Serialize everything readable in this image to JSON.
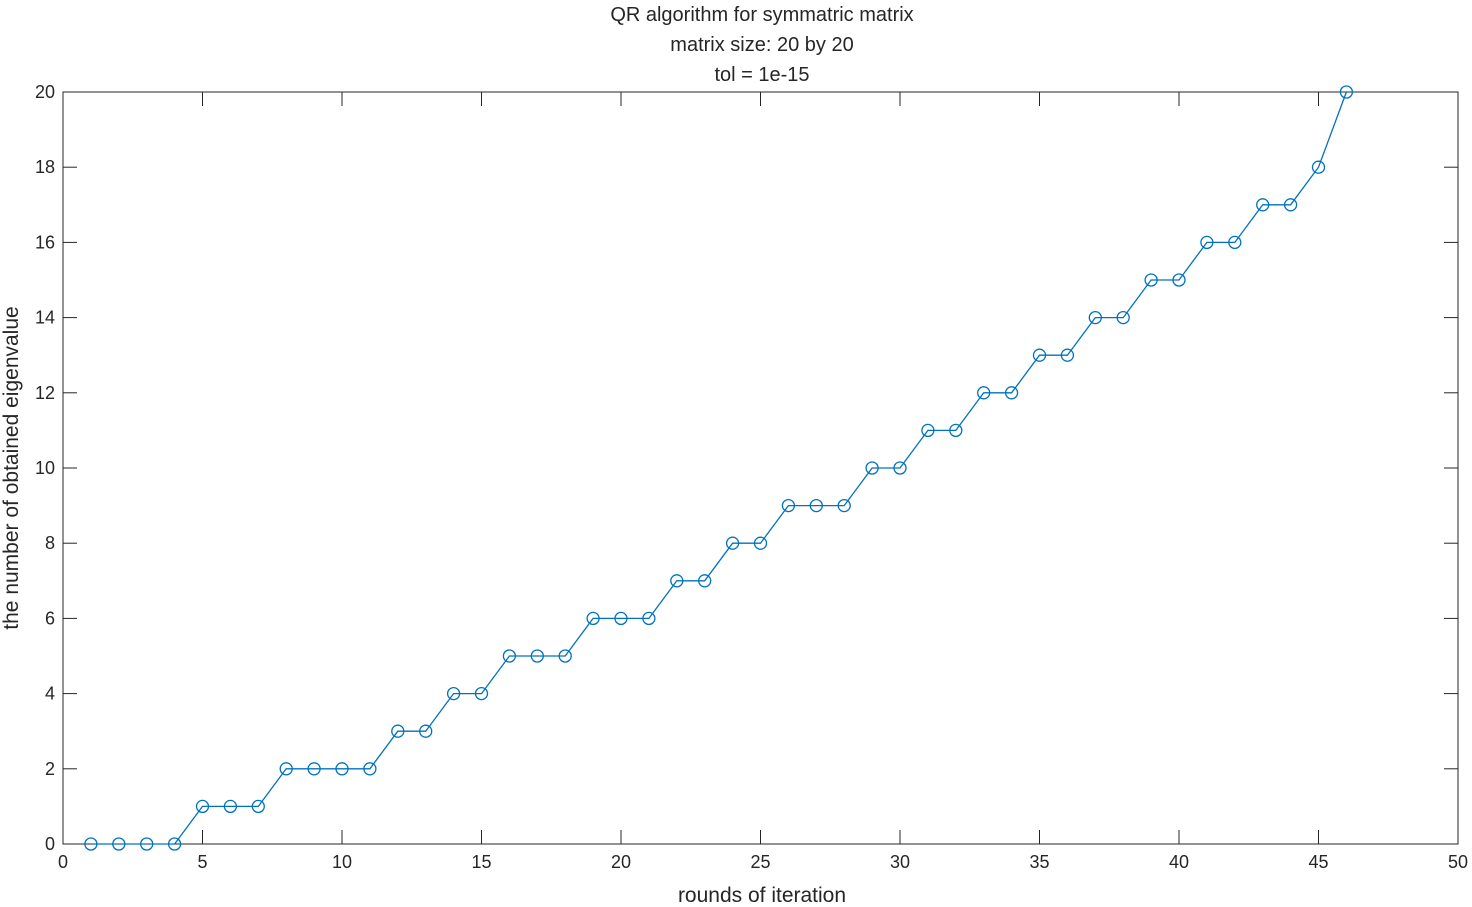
{
  "chart_data": {
    "type": "line",
    "title": [
      "QR algorithm for symmatric matrix",
      "matrix size: 20 by 20",
      "tol = 1e-15"
    ],
    "xlabel": "rounds of iteration",
    "ylabel": "the number of obtained eigenvalue",
    "xlim": [
      0,
      50
    ],
    "ylim": [
      0,
      20
    ],
    "xticks": [
      0,
      5,
      10,
      15,
      20,
      25,
      30,
      35,
      40,
      45,
      50
    ],
    "yticks": [
      0,
      2,
      4,
      6,
      8,
      10,
      12,
      14,
      16,
      18,
      20
    ],
    "grid": false,
    "marker": "circle",
    "color": "#0072BD",
    "x": [
      1,
      2,
      3,
      4,
      5,
      6,
      7,
      8,
      9,
      10,
      11,
      12,
      13,
      14,
      15,
      16,
      17,
      18,
      19,
      20,
      21,
      22,
      23,
      24,
      25,
      26,
      27,
      28,
      29,
      30,
      31,
      32,
      33,
      34,
      35,
      36,
      37,
      38,
      39,
      40,
      41,
      42,
      43,
      44,
      45,
      46
    ],
    "y": [
      0,
      0,
      0,
      0,
      1,
      1,
      1,
      2,
      2,
      2,
      2,
      3,
      3,
      4,
      4,
      5,
      5,
      5,
      6,
      6,
      6,
      7,
      7,
      8,
      8,
      9,
      9,
      9,
      10,
      10,
      11,
      11,
      12,
      12,
      13,
      13,
      14,
      14,
      15,
      15,
      16,
      16,
      17,
      17,
      18,
      20
    ]
  }
}
